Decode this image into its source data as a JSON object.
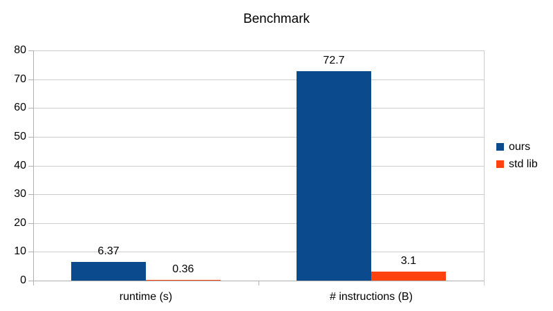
{
  "chart_data": {
    "type": "bar",
    "title": "Benchmark",
    "categories": [
      "runtime (s)",
      "# instructions (B)"
    ],
    "series": [
      {
        "name": "ours",
        "color": "#0b4a8c",
        "values": [
          6.37,
          72.7
        ],
        "labels": [
          "6.37",
          "72.7"
        ]
      },
      {
        "name": "std lib",
        "color": "#ff420e",
        "values": [
          0.36,
          3.1
        ],
        "labels": [
          "0.36",
          "3.1"
        ]
      }
    ],
    "ylim": [
      0,
      80
    ],
    "ytick_step": 10,
    "yticks": [
      "0",
      "10",
      "20",
      "30",
      "40",
      "50",
      "60",
      "70",
      "80"
    ],
    "xlabel": "",
    "ylabel": "",
    "grid": "horizontal",
    "legend_position": "right"
  },
  "colors": {
    "gridline": "#cccccc",
    "axis": "#b0b0b0",
    "text": "#000000",
    "background": "#ffffff"
  }
}
